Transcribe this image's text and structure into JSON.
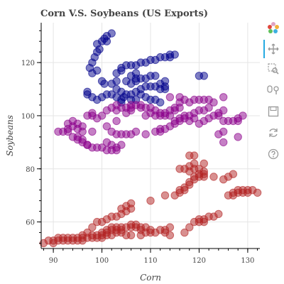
{
  "toolbar": {
    "tools": [
      "bokeh-logo-icon",
      "pan-icon",
      "box-zoom-icon",
      "wheel-zoom-icon",
      "save-icon",
      "reset-icon",
      "help-icon"
    ],
    "active": "pan-icon"
  },
  "chart_data": {
    "type": "scatter",
    "title": "Corn V.S. Soybeans (US Exports)",
    "xlabel": "Corn",
    "ylabel": "Soybeans",
    "xlim": [
      87.5,
      132.5
    ],
    "ylim": [
      50,
      135
    ],
    "xticks": [
      90,
      100,
      110,
      120,
      130
    ],
    "yticks": [
      60,
      80,
      100,
      120
    ],
    "grid": true,
    "series": [
      {
        "color": "#00008b",
        "points": [
          [
            98,
            120
          ],
          [
            98.5,
            122
          ],
          [
            99,
            124
          ],
          [
            99.5,
            125
          ],
          [
            99,
            127
          ],
          [
            100,
            128
          ],
          [
            100.5,
            129
          ],
          [
            101,
            128
          ],
          [
            101,
            130
          ],
          [
            102,
            131
          ],
          [
            99,
            117
          ],
          [
            100,
            113
          ],
          [
            100.5,
            112
          ],
          [
            98,
            116
          ],
          [
            97.5,
            118
          ],
          [
            97,
            108
          ],
          [
            97,
            109
          ],
          [
            98,
            107
          ],
          [
            99,
            106
          ],
          [
            100,
            107
          ],
          [
            101,
            108
          ],
          [
            102,
            108
          ],
          [
            103,
            107
          ],
          [
            104,
            106
          ],
          [
            104,
            105
          ],
          [
            104.5,
            107
          ],
          [
            105,
            108
          ],
          [
            106,
            108
          ],
          [
            106,
            106
          ],
          [
            107,
            106
          ],
          [
            107,
            109
          ],
          [
            108,
            110
          ],
          [
            109,
            111
          ],
          [
            110,
            111
          ],
          [
            111,
            111
          ],
          [
            112,
            112
          ],
          [
            112,
            110
          ],
          [
            113,
            111
          ],
          [
            113,
            110
          ],
          [
            103,
            116
          ],
          [
            104,
            117
          ],
          [
            104,
            118
          ],
          [
            105,
            119
          ],
          [
            106,
            119
          ],
          [
            107,
            119
          ],
          [
            108,
            120
          ],
          [
            109,
            120
          ],
          [
            110,
            121
          ],
          [
            111,
            121
          ],
          [
            112,
            122
          ],
          [
            113,
            122
          ],
          [
            114,
            122
          ],
          [
            114,
            123
          ],
          [
            115,
            123
          ],
          [
            106,
            115
          ],
          [
            107,
            116
          ],
          [
            107,
            113
          ],
          [
            108,
            114
          ],
          [
            109,
            114
          ],
          [
            110,
            115
          ],
          [
            111,
            115
          ],
          [
            106,
            112
          ],
          [
            107,
            114
          ],
          [
            105,
            113
          ],
          [
            103,
            113
          ],
          [
            102,
            112
          ],
          [
            103,
            110
          ],
          [
            104,
            109
          ],
          [
            108,
            108
          ],
          [
            109,
            107
          ],
          [
            110,
            106
          ],
          [
            111,
            106
          ],
          [
            112,
            105
          ],
          [
            120,
            115
          ],
          [
            121,
            115
          ],
          [
            113,
            113
          ]
        ]
      },
      {
        "color": "#8b008b",
        "points": [
          [
            91,
            94
          ],
          [
            92,
            94
          ],
          [
            93,
            94
          ],
          [
            93,
            95
          ],
          [
            94,
            96
          ],
          [
            93,
            97
          ],
          [
            94,
            98
          ],
          [
            95,
            97
          ],
          [
            95,
            95
          ],
          [
            96,
            94
          ],
          [
            94,
            92
          ],
          [
            95,
            91
          ],
          [
            96,
            90
          ],
          [
            97,
            89
          ],
          [
            98,
            88
          ],
          [
            99,
            88
          ],
          [
            100,
            88
          ],
          [
            101,
            87
          ],
          [
            102,
            87
          ],
          [
            103,
            87
          ],
          [
            103,
            88
          ],
          [
            104,
            89
          ],
          [
            102,
            89
          ],
          [
            101,
            90
          ],
          [
            102,
            94
          ],
          [
            103,
            93
          ],
          [
            104,
            93
          ],
          [
            105,
            93
          ],
          [
            106,
            93
          ],
          [
            107,
            94
          ],
          [
            109,
            93
          ],
          [
            111,
            94
          ],
          [
            112,
            95
          ],
          [
            112,
            94
          ],
          [
            113,
            95
          ],
          [
            114,
            96
          ],
          [
            115,
            97
          ],
          [
            115,
            98
          ],
          [
            116,
            99
          ],
          [
            117,
            100
          ],
          [
            118,
            100
          ],
          [
            119,
            101
          ],
          [
            120,
            102
          ],
          [
            121,
            102
          ],
          [
            122,
            103
          ],
          [
            116,
            98
          ],
          [
            117,
            99
          ],
          [
            118,
            98
          ],
          [
            119,
            99
          ],
          [
            120,
            97
          ],
          [
            121,
            98
          ],
          [
            122,
            99
          ],
          [
            123,
            100
          ],
          [
            124,
            100
          ],
          [
            124,
            101
          ],
          [
            125,
            102
          ],
          [
            125,
            98
          ],
          [
            126,
            98
          ],
          [
            127,
            98
          ],
          [
            128,
            98
          ],
          [
            128,
            99
          ],
          [
            129,
            100
          ],
          [
            97,
            100
          ],
          [
            98,
            101
          ],
          [
            98,
            100
          ],
          [
            99,
            99
          ],
          [
            100,
            100
          ],
          [
            101,
            102
          ],
          [
            102,
            103
          ],
          [
            103,
            102
          ],
          [
            104,
            103
          ],
          [
            105,
            103
          ],
          [
            106,
            103
          ],
          [
            107,
            104
          ],
          [
            108,
            104
          ],
          [
            109,
            103
          ],
          [
            110,
            103
          ],
          [
            111,
            102
          ],
          [
            112,
            101
          ],
          [
            113,
            101
          ],
          [
            114,
            102
          ],
          [
            115,
            102
          ],
          [
            115,
            103
          ],
          [
            116,
            103
          ],
          [
            116,
            105
          ],
          [
            117,
            106
          ],
          [
            118,
            105
          ],
          [
            119,
            106
          ],
          [
            120,
            106
          ],
          [
            121,
            106
          ],
          [
            122,
            106
          ],
          [
            123,
            105
          ],
          [
            125,
            107
          ],
          [
            103,
            104
          ],
          [
            106,
            104
          ],
          [
            108,
            103
          ],
          [
            109,
            100
          ],
          [
            110,
            101
          ],
          [
            111,
            100
          ],
          [
            112,
            100
          ],
          [
            113,
            100
          ],
          [
            114,
            100
          ],
          [
            105,
            101
          ],
          [
            106,
            102
          ],
          [
            96,
            96
          ],
          [
            98,
            94
          ],
          [
            101,
            96
          ],
          [
            103,
            98
          ],
          [
            97,
            89
          ],
          [
            96,
            91
          ],
          [
            95,
            92
          ],
          [
            125,
            90
          ],
          [
            125,
            94
          ],
          [
            124,
            93
          ],
          [
            128,
            92
          ],
          [
            114,
            107
          ],
          [
            116,
            107
          ]
        ]
      },
      {
        "color": "#b22222",
        "points": [
          [
            88,
            52
          ],
          [
            89,
            53
          ],
          [
            90,
            53
          ],
          [
            91,
            54
          ],
          [
            92,
            54
          ],
          [
            93,
            53
          ],
          [
            94,
            54
          ],
          [
            95,
            54
          ],
          [
            96,
            54
          ],
          [
            96,
            55
          ],
          [
            97,
            56
          ],
          [
            98,
            55
          ],
          [
            98,
            54
          ],
          [
            99,
            55
          ],
          [
            99,
            54
          ],
          [
            100,
            55
          ],
          [
            100,
            56
          ],
          [
            101,
            56
          ],
          [
            101,
            57
          ],
          [
            102,
            57
          ],
          [
            102,
            58
          ],
          [
            103,
            57
          ],
          [
            103,
            58
          ],
          [
            104,
            58
          ],
          [
            104,
            57
          ],
          [
            105,
            58
          ],
          [
            106,
            58
          ],
          [
            106,
            59
          ],
          [
            107,
            59
          ],
          [
            107,
            58
          ],
          [
            108,
            58
          ],
          [
            108,
            57
          ],
          [
            109,
            58
          ],
          [
            109,
            56
          ],
          [
            110,
            56
          ],
          [
            111,
            56
          ],
          [
            112,
            57
          ],
          [
            113,
            57
          ],
          [
            114,
            58
          ],
          [
            98,
            58
          ],
          [
            99,
            60
          ],
          [
            100,
            60
          ],
          [
            101,
            61
          ],
          [
            102,
            62
          ],
          [
            103,
            62
          ],
          [
            104,
            63
          ],
          [
            105,
            64
          ],
          [
            104,
            65
          ],
          [
            105,
            66
          ],
          [
            106,
            65
          ],
          [
            106,
            67
          ],
          [
            110,
            68
          ],
          [
            113,
            70
          ],
          [
            115,
            70
          ],
          [
            116,
            71
          ],
          [
            116,
            72
          ],
          [
            117,
            72
          ],
          [
            117,
            73
          ],
          [
            118,
            74
          ],
          [
            118,
            75
          ],
          [
            119,
            76
          ],
          [
            119,
            77
          ],
          [
            120,
            77
          ],
          [
            120,
            78
          ],
          [
            121,
            78
          ],
          [
            121,
            79
          ],
          [
            120,
            80
          ],
          [
            119,
            80
          ],
          [
            118,
            79
          ],
          [
            118,
            81
          ],
          [
            119,
            82
          ],
          [
            121,
            82
          ],
          [
            121,
            77
          ],
          [
            116,
            80
          ],
          [
            117,
            80
          ],
          [
            118,
            85
          ],
          [
            119,
            85
          ],
          [
            123,
            77
          ],
          [
            125,
            76
          ],
          [
            126,
            77
          ],
          [
            127,
            78
          ],
          [
            120,
            61
          ],
          [
            121,
            61
          ],
          [
            122,
            62
          ],
          [
            123,
            62
          ],
          [
            124,
            63
          ],
          [
            119,
            60
          ],
          [
            120,
            60
          ],
          [
            121,
            60
          ],
          [
            118,
            58
          ],
          [
            126,
            70
          ],
          [
            127,
            71
          ],
          [
            128,
            71
          ],
          [
            129,
            71
          ],
          [
            130,
            71
          ],
          [
            131,
            72
          ],
          [
            132,
            71
          ],
          [
            128,
            72
          ],
          [
            129,
            72
          ],
          [
            127,
            70
          ],
          [
            130,
            72
          ],
          [
            114,
            55
          ],
          [
            113,
            56
          ],
          [
            110,
            57
          ],
          [
            108,
            55
          ],
          [
            106,
            55
          ],
          [
            105,
            55
          ],
          [
            104,
            56
          ],
          [
            103,
            56
          ],
          [
            102,
            55
          ],
          [
            101,
            55
          ],
          [
            100,
            54
          ],
          [
            97,
            54
          ],
          [
            96,
            53
          ],
          [
            95,
            53
          ],
          [
            94,
            53
          ],
          [
            93,
            54
          ],
          [
            92,
            53
          ],
          [
            91,
            53
          ],
          [
            90,
            52
          ],
          [
            117,
            56
          ]
        ]
      }
    ]
  }
}
